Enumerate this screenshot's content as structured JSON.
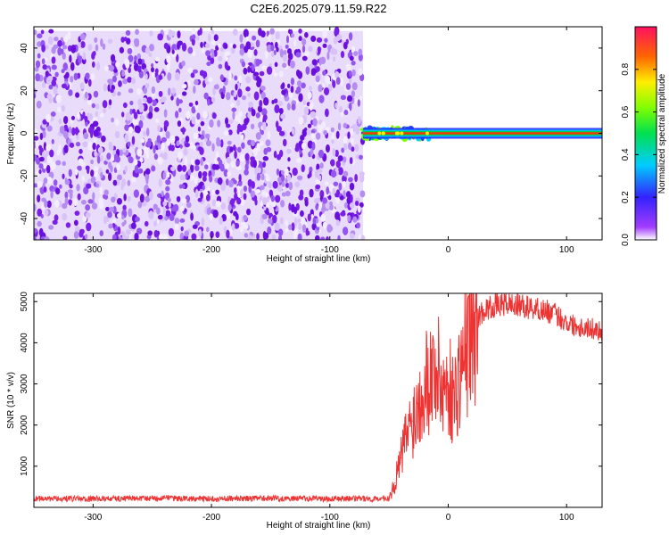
{
  "title": "C2E6.2025.079.11.59.R22",
  "colors": {
    "snr_line": "#ee3333",
    "noise": "#7a1fe8",
    "background": "#ffffff"
  },
  "chart_data": [
    {
      "type": "heatmap",
      "xlabel": "Height of straight line (km)",
      "ylabel": "Frequency (Hz)",
      "xlim": [
        -350,
        130
      ],
      "ylim": [
        -50,
        50
      ],
      "x_ticks": [
        -300,
        -200,
        -100,
        0,
        100
      ],
      "y_ticks": [
        -40,
        -20,
        0,
        20,
        40
      ],
      "colorbar": {
        "label": "Normalized spectral amplitude",
        "range": [
          0,
          1
        ],
        "ticks": [
          "0.0",
          "0.2",
          "0.4",
          "0.6",
          "0.8"
        ],
        "tick_values": [
          0,
          0.2,
          0.4,
          0.6,
          0.8
        ],
        "colormap": "rainbow"
      },
      "regions": [
        {
          "description": "noise",
          "x": [
            -350,
            -72
          ],
          "y": [
            -50,
            48
          ],
          "amplitude": 0.15
        },
        {
          "description": "signal onset",
          "x": [
            -72,
            -15
          ],
          "y": [
            -3,
            3
          ],
          "amplitude": 0.6
        },
        {
          "description": "steady carrier",
          "x": [
            -15,
            130
          ],
          "y": [
            -1,
            1
          ],
          "amplitude": 1.0
        }
      ]
    },
    {
      "type": "line",
      "xlabel": "Height of straight line (km)",
      "ylabel": "SNR (10 * v/v)",
      "xlim": [
        -350,
        130
      ],
      "ylim": [
        0,
        5200
      ],
      "x_ticks": [
        -300,
        -200,
        -100,
        0,
        100
      ],
      "y_ticks": [
        1000,
        2000,
        3000,
        4000,
        5000
      ],
      "series": [
        {
          "x": [
            -350,
            -300,
            -250,
            -200,
            -150,
            -100,
            -60,
            -50,
            -45,
            -40,
            -35,
            -30,
            -25,
            -20,
            -15,
            -10,
            -5,
            0,
            5,
            10,
            15,
            20,
            25,
            30,
            40,
            50,
            60,
            70,
            80,
            90,
            100,
            110,
            120,
            130
          ],
          "y": [
            200,
            200,
            210,
            200,
            210,
            200,
            200,
            210,
            600,
            1200,
            1800,
            2100,
            2600,
            3100,
            3200,
            3400,
            2900,
            3000,
            2600,
            3300,
            3800,
            4300,
            4600,
            4800,
            4900,
            4950,
            4900,
            4850,
            4800,
            4700,
            4500,
            4400,
            4350,
            4300
          ]
        }
      ]
    }
  ]
}
